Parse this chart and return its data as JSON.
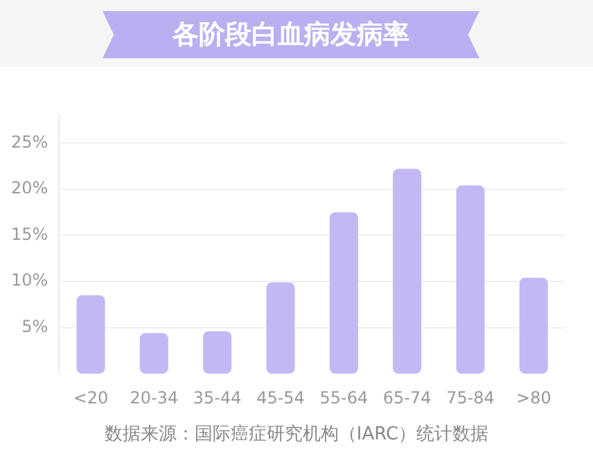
{
  "chart_data": {
    "type": "bar",
    "title": "各阶段白血病发病率",
    "categories": [
      "<20",
      "20-34",
      "35-44",
      "45-54",
      "55-64",
      "65-74",
      "75-84",
      ">80"
    ],
    "values": [
      8.5,
      4.4,
      4.6,
      9.9,
      17.5,
      22.2,
      20.4,
      10.4
    ],
    "color": "#c4b8f4",
    "ylim": [
      0,
      28
    ],
    "yticks": [
      {
        "value": 5,
        "label": "5%"
      },
      {
        "value": 10,
        "label": "10%"
      },
      {
        "value": 15,
        "label": "15%"
      },
      {
        "value": 20,
        "label": "20%"
      },
      {
        "value": 25,
        "label": "25%"
      }
    ],
    "grid": "y",
    "annotations": [
      "数据来源：国际癌症研究机构（IARC）统计数据"
    ]
  }
}
